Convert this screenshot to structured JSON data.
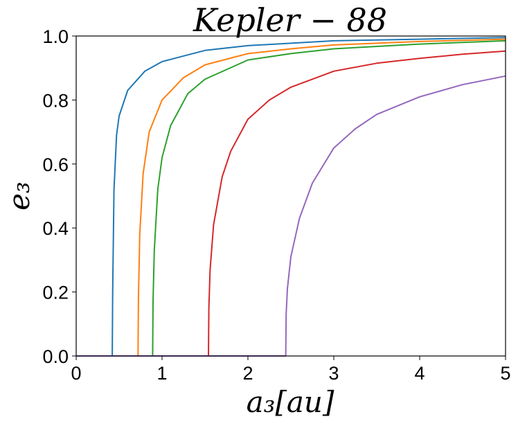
{
  "chart_data": {
    "type": "line",
    "title": "Kepler − 88",
    "xlabel": "a₃[au]",
    "ylabel": "e₃",
    "xlim": [
      0,
      5
    ],
    "ylim": [
      0,
      1
    ],
    "xticks": [
      "0",
      "1",
      "2",
      "3",
      "4",
      "5"
    ],
    "yticks": [
      "0.0",
      "0.2",
      "0.4",
      "0.6",
      "0.8",
      "1.0"
    ],
    "grid": false,
    "legend": "none",
    "series": [
      {
        "color": "#1f77b4",
        "x": [
          0,
          0.42,
          0.425,
          0.44,
          0.47,
          0.5,
          0.6,
          0.8,
          1.0,
          1.5,
          2,
          3,
          4,
          5
        ],
        "y": [
          0,
          0,
          0.2,
          0.52,
          0.69,
          0.75,
          0.83,
          0.89,
          0.92,
          0.955,
          0.97,
          0.985,
          0.99,
          0.995
        ]
      },
      {
        "color": "#ff7f0e",
        "x": [
          0,
          0.72,
          0.725,
          0.74,
          0.78,
          0.85,
          1.0,
          1.25,
          1.5,
          2,
          2.5,
          3,
          4,
          5
        ],
        "y": [
          0,
          0,
          0.18,
          0.38,
          0.57,
          0.7,
          0.8,
          0.87,
          0.91,
          0.945,
          0.96,
          0.972,
          0.983,
          0.99
        ]
      },
      {
        "color": "#2ca02c",
        "x": [
          0,
          0.89,
          0.895,
          0.91,
          0.95,
          1.0,
          1.1,
          1.3,
          1.5,
          2,
          2.5,
          3,
          4,
          5
        ],
        "y": [
          0,
          0,
          0.17,
          0.33,
          0.52,
          0.62,
          0.72,
          0.82,
          0.865,
          0.925,
          0.945,
          0.96,
          0.975,
          0.985
        ]
      },
      {
        "color": "#d62728",
        "x": [
          0,
          1.54,
          1.545,
          1.56,
          1.6,
          1.7,
          1.8,
          2.0,
          2.25,
          2.5,
          3,
          3.5,
          4,
          4.5,
          5
        ],
        "y": [
          0,
          0,
          0.15,
          0.27,
          0.41,
          0.56,
          0.64,
          0.74,
          0.8,
          0.84,
          0.89,
          0.915,
          0.93,
          0.943,
          0.953
        ]
      },
      {
        "color": "#9467bd",
        "x": [
          0,
          2.44,
          2.445,
          2.46,
          2.5,
          2.6,
          2.75,
          3.0,
          3.25,
          3.5,
          4,
          4.5,
          5
        ],
        "y": [
          0,
          0,
          0.13,
          0.21,
          0.31,
          0.43,
          0.54,
          0.65,
          0.71,
          0.755,
          0.81,
          0.848,
          0.875
        ]
      }
    ]
  }
}
